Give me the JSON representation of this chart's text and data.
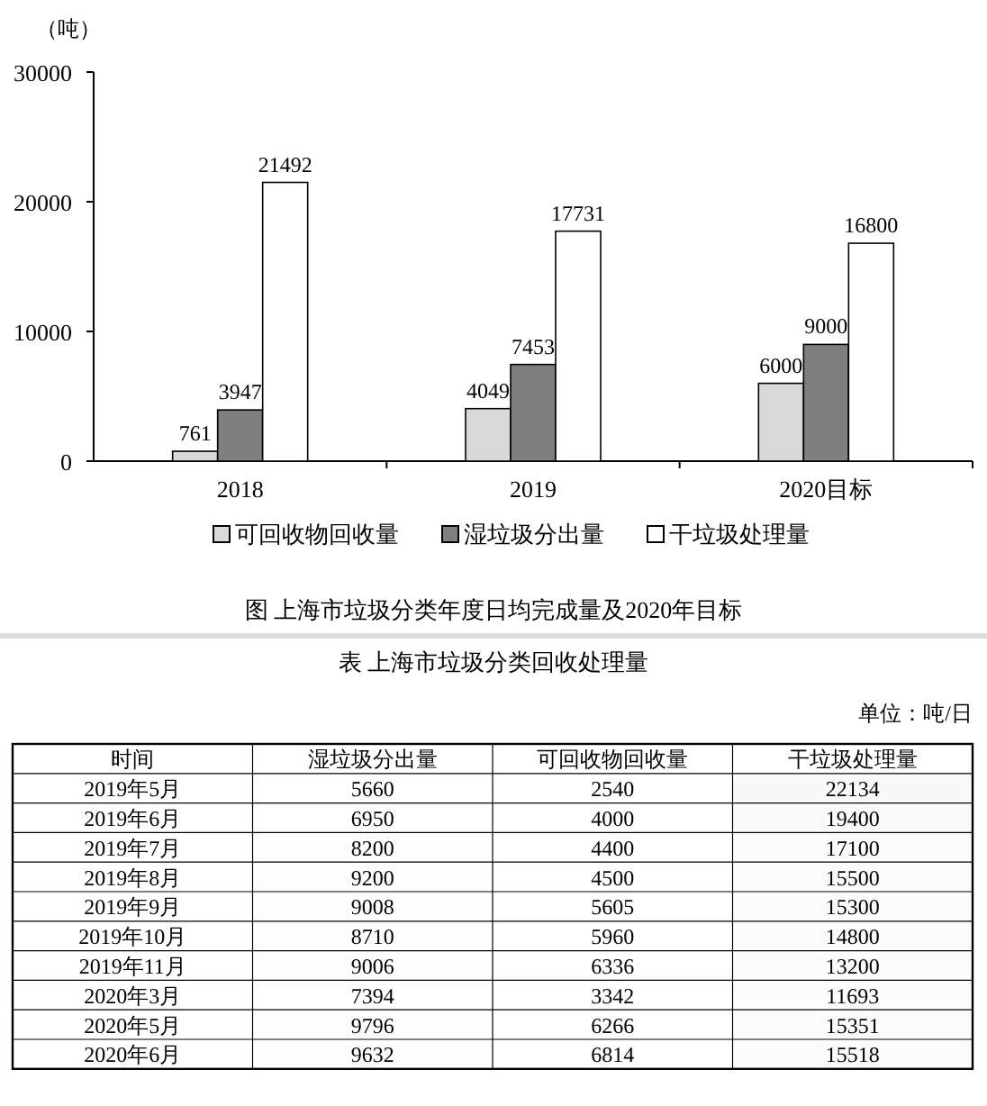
{
  "chart_data": [
    {
      "type": "bar",
      "ylabel": "（吨）",
      "categories": [
        "2018",
        "2019",
        "2020目标"
      ],
      "series": [
        {
          "name": "可回收物回收量",
          "color": "#d9d9d9",
          "values": [
            761,
            4049,
            6000
          ]
        },
        {
          "name": "湿垃圾分出量",
          "color": "#7f7f7f",
          "values": [
            3947,
            7453,
            9000
          ]
        },
        {
          "name": "干垃圾处理量",
          "color": "#ffffff",
          "values": [
            21492,
            17731,
            16800
          ]
        }
      ],
      "ylim": [
        0,
        30000
      ],
      "yticks": [
        0,
        10000,
        20000,
        30000
      ],
      "data_labels": true,
      "legend": "bottom",
      "grid": false,
      "annotations": [
        "图  上海市垃圾分类年度日均完成量及2020年目标"
      ]
    },
    {
      "type": "heatmap",
      "title": "表  上海市垃圾分类回收处理量",
      "ylabel": "时间",
      "categories": [
        "湿垃圾分出量",
        "可回收物回收量",
        "干垃圾处理量"
      ],
      "y_categories": [
        "2019年5月",
        "2019年6月",
        "2019年7月",
        "2019年8月",
        "2019年9月",
        "2019年10月",
        "2019年11月",
        "2020年3月",
        "2020年5月",
        "2020年6月"
      ],
      "cells": [
        [
          5660,
          2540,
          22134
        ],
        [
          6950,
          4000,
          19400
        ],
        [
          8200,
          4400,
          17100
        ],
        [
          9200,
          4500,
          15500
        ],
        [
          9008,
          5605,
          15300
        ],
        [
          8710,
          5960,
          14800
        ],
        [
          9006,
          6336,
          13200
        ],
        [
          7394,
          3342,
          11693
        ],
        [
          9796,
          6266,
          15351
        ],
        [
          9632,
          6814,
          15518
        ]
      ],
      "data_labels": true,
      "annotations": [
        "单位：吨/日"
      ]
    }
  ]
}
